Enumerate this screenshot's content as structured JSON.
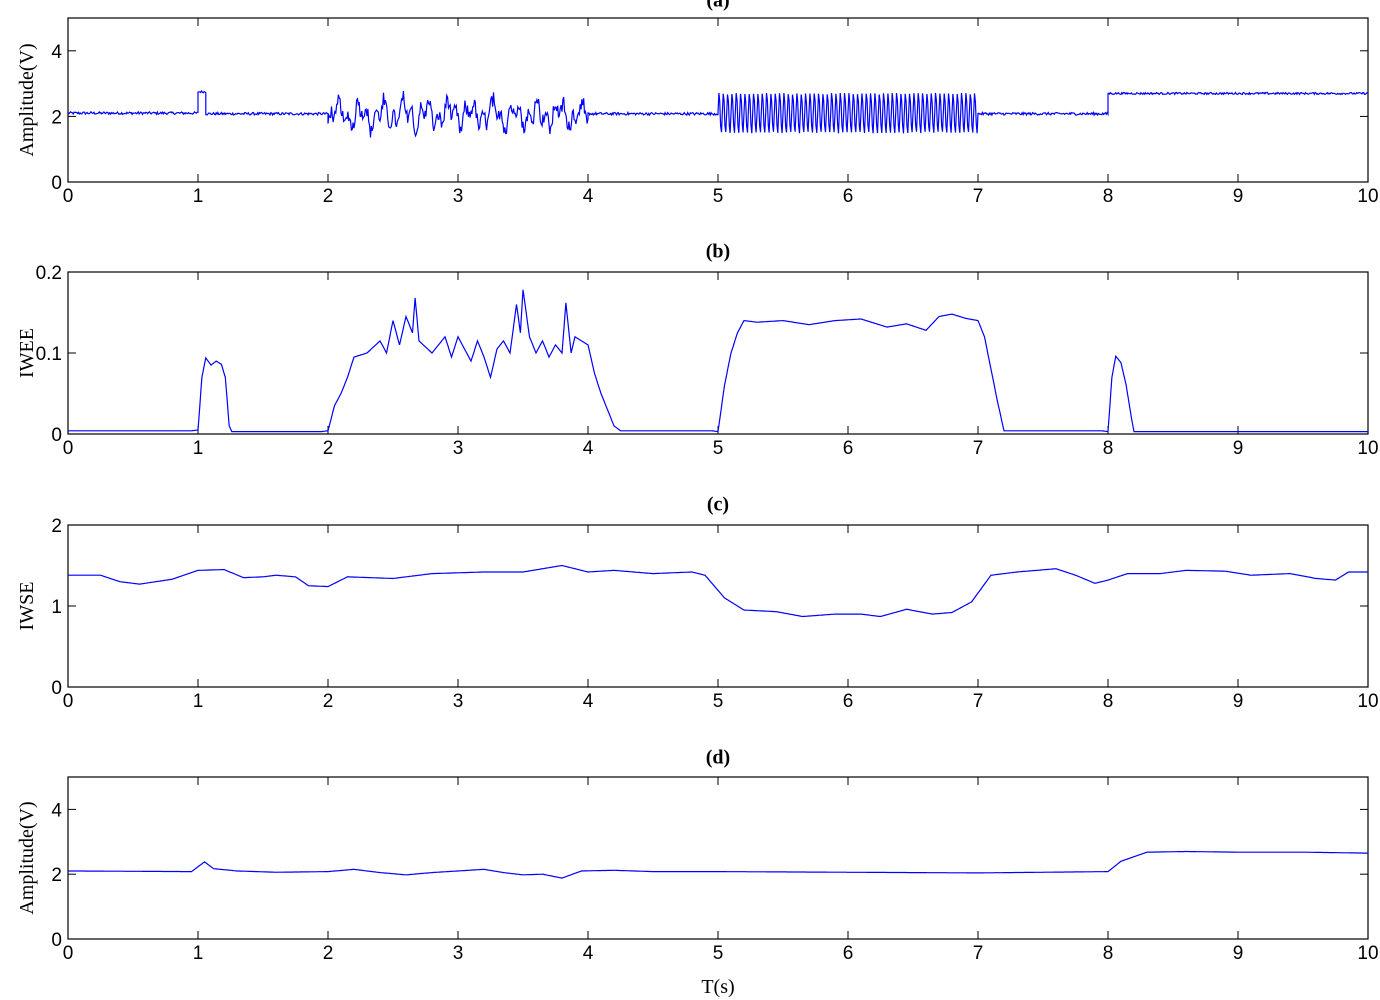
{
  "chart_data": [
    {
      "type": "line",
      "title": "(a)",
      "xlabel": "",
      "ylabel": "Amplitude(V)",
      "xlim": [
        0,
        10
      ],
      "ylim": [
        0,
        5
      ],
      "xticks": [
        "0",
        "1",
        "2",
        "3",
        "4",
        "5",
        "6",
        "7",
        "8",
        "9",
        "10"
      ],
      "yticks": [
        "0",
        "2",
        "4"
      ],
      "ytick_values": [
        0,
        2,
        4
      ],
      "color": "#0000ff",
      "series": [
        {
          "segments": [
            {
              "t0": 0,
              "t1": 1,
              "kind": "flat",
              "level": 2.1,
              "noise": 0.04
            },
            {
              "t0": 1,
              "t1": 1.06,
              "kind": "flat",
              "level": 2.75,
              "noise": 0.03
            },
            {
              "t0": 1.06,
              "t1": 2,
              "kind": "flat",
              "level": 2.08,
              "noise": 0.04
            },
            {
              "t0": 2,
              "t1": 4,
              "kind": "burst",
              "level": 2.05,
              "amp": 0.6
            },
            {
              "t0": 4,
              "t1": 5,
              "kind": "flat",
              "level": 2.08,
              "noise": 0.04
            },
            {
              "t0": 5,
              "t1": 7,
              "kind": "osc",
              "level": 2.1,
              "amp": 0.62,
              "freq": 30
            },
            {
              "t0": 7,
              "t1": 8,
              "kind": "flat",
              "level": 2.08,
              "noise": 0.04
            },
            {
              "t0": 8,
              "t1": 10,
              "kind": "flat",
              "level": 2.7,
              "noise": 0.03
            }
          ]
        }
      ]
    },
    {
      "type": "line",
      "title": "(b)",
      "xlabel": "",
      "ylabel": "IWEE",
      "xlim": [
        0,
        10
      ],
      "ylim": [
        0,
        0.2
      ],
      "xticks": [
        "0",
        "1",
        "2",
        "3",
        "4",
        "5",
        "6",
        "7",
        "8",
        "9",
        "10"
      ],
      "yticks": [
        "0",
        "0.1",
        "0.2"
      ],
      "ytick_values": [
        0,
        0.1,
        0.2
      ],
      "color": "#0000ff",
      "series": [
        {
          "points": [
            [
              0,
              0.004
            ],
            [
              0.95,
              0.004
            ],
            [
              1.0,
              0.005
            ],
            [
              1.03,
              0.07
            ],
            [
              1.06,
              0.094
            ],
            [
              1.1,
              0.085
            ],
            [
              1.14,
              0.09
            ],
            [
              1.18,
              0.086
            ],
            [
              1.21,
              0.07
            ],
            [
              1.24,
              0.01
            ],
            [
              1.26,
              0.003
            ],
            [
              1.95,
              0.003
            ],
            [
              2.0,
              0.004
            ],
            [
              2.05,
              0.035
            ],
            [
              2.1,
              0.05
            ],
            [
              2.15,
              0.07
            ],
            [
              2.2,
              0.095
            ],
            [
              2.3,
              0.1
            ],
            [
              2.4,
              0.115
            ],
            [
              2.45,
              0.1
            ],
            [
              2.5,
              0.14
            ],
            [
              2.55,
              0.11
            ],
            [
              2.6,
              0.145
            ],
            [
              2.65,
              0.125
            ],
            [
              2.67,
              0.168
            ],
            [
              2.7,
              0.115
            ],
            [
              2.8,
              0.1
            ],
            [
              2.9,
              0.12
            ],
            [
              2.95,
              0.095
            ],
            [
              3.0,
              0.12
            ],
            [
              3.05,
              0.105
            ],
            [
              3.1,
              0.09
            ],
            [
              3.15,
              0.115
            ],
            [
              3.2,
              0.095
            ],
            [
              3.25,
              0.07
            ],
            [
              3.3,
              0.105
            ],
            [
              3.35,
              0.115
            ],
            [
              3.4,
              0.1
            ],
            [
              3.45,
              0.16
            ],
            [
              3.48,
              0.125
            ],
            [
              3.5,
              0.178
            ],
            [
              3.55,
              0.12
            ],
            [
              3.6,
              0.1
            ],
            [
              3.65,
              0.115
            ],
            [
              3.7,
              0.095
            ],
            [
              3.75,
              0.11
            ],
            [
              3.8,
              0.1
            ],
            [
              3.83,
              0.162
            ],
            [
              3.87,
              0.1
            ],
            [
              3.9,
              0.12
            ],
            [
              3.95,
              0.115
            ],
            [
              4.0,
              0.11
            ],
            [
              4.05,
              0.075
            ],
            [
              4.1,
              0.05
            ],
            [
              4.15,
              0.03
            ],
            [
              4.2,
              0.01
            ],
            [
              4.25,
              0.004
            ],
            [
              4.95,
              0.004
            ],
            [
              5.0,
              0.003
            ],
            [
              5.05,
              0.06
            ],
            [
              5.1,
              0.1
            ],
            [
              5.15,
              0.125
            ],
            [
              5.2,
              0.14
            ],
            [
              5.3,
              0.138
            ],
            [
              5.5,
              0.14
            ],
            [
              5.7,
              0.135
            ],
            [
              5.9,
              0.14
            ],
            [
              6.1,
              0.142
            ],
            [
              6.3,
              0.132
            ],
            [
              6.45,
              0.136
            ],
            [
              6.6,
              0.128
            ],
            [
              6.7,
              0.145
            ],
            [
              6.8,
              0.148
            ],
            [
              6.9,
              0.143
            ],
            [
              7.0,
              0.14
            ],
            [
              7.05,
              0.12
            ],
            [
              7.1,
              0.08
            ],
            [
              7.15,
              0.04
            ],
            [
              7.2,
              0.004
            ],
            [
              7.95,
              0.004
            ],
            [
              8.0,
              0.003
            ],
            [
              8.03,
              0.07
            ],
            [
              8.06,
              0.096
            ],
            [
              8.1,
              0.088
            ],
            [
              8.14,
              0.06
            ],
            [
              8.18,
              0.02
            ],
            [
              8.2,
              0.003
            ],
            [
              10,
              0.003
            ]
          ]
        }
      ]
    },
    {
      "type": "line",
      "title": "(c)",
      "xlabel": "",
      "ylabel": "IWSE",
      "xlim": [
        0,
        10
      ],
      "ylim": [
        0,
        2
      ],
      "xticks": [
        "0",
        "1",
        "2",
        "3",
        "4",
        "5",
        "6",
        "7",
        "8",
        "9",
        "10"
      ],
      "yticks": [
        "0",
        "1",
        "2"
      ],
      "ytick_values": [
        0,
        1,
        2
      ],
      "color": "#0000ff",
      "series": [
        {
          "points": [
            [
              0,
              1.38
            ],
            [
              0.25,
              1.38
            ],
            [
              0.4,
              1.3
            ],
            [
              0.55,
              1.27
            ],
            [
              0.8,
              1.33
            ],
            [
              1.0,
              1.44
            ],
            [
              1.2,
              1.45
            ],
            [
              1.35,
              1.35
            ],
            [
              1.5,
              1.36
            ],
            [
              1.6,
              1.38
            ],
            [
              1.75,
              1.36
            ],
            [
              1.85,
              1.25
            ],
            [
              2.0,
              1.24
            ],
            [
              2.15,
              1.36
            ],
            [
              2.5,
              1.34
            ],
            [
              2.8,
              1.4
            ],
            [
              3.2,
              1.42
            ],
            [
              3.5,
              1.42
            ],
            [
              3.8,
              1.5
            ],
            [
              4.0,
              1.42
            ],
            [
              4.2,
              1.44
            ],
            [
              4.5,
              1.4
            ],
            [
              4.8,
              1.42
            ],
            [
              4.9,
              1.38
            ],
            [
              5.05,
              1.1
            ],
            [
              5.2,
              0.95
            ],
            [
              5.45,
              0.93
            ],
            [
              5.65,
              0.87
            ],
            [
              5.9,
              0.9
            ],
            [
              6.1,
              0.9
            ],
            [
              6.25,
              0.87
            ],
            [
              6.45,
              0.96
            ],
            [
              6.65,
              0.9
            ],
            [
              6.8,
              0.92
            ],
            [
              6.95,
              1.05
            ],
            [
              7.1,
              1.38
            ],
            [
              7.3,
              1.42
            ],
            [
              7.6,
              1.46
            ],
            [
              7.75,
              1.38
            ],
            [
              7.9,
              1.28
            ],
            [
              8.0,
              1.32
            ],
            [
              8.15,
              1.4
            ],
            [
              8.4,
              1.4
            ],
            [
              8.6,
              1.44
            ],
            [
              8.9,
              1.43
            ],
            [
              9.1,
              1.38
            ],
            [
              9.4,
              1.4
            ],
            [
              9.6,
              1.34
            ],
            [
              9.75,
              1.32
            ],
            [
              9.85,
              1.42
            ],
            [
              10,
              1.42
            ]
          ]
        }
      ]
    },
    {
      "type": "line",
      "title": "(d)",
      "xlabel": "T(s)",
      "ylabel": "Amplitude(V)",
      "xlim": [
        0,
        10
      ],
      "ylim": [
        0,
        5
      ],
      "xticks": [
        "0",
        "1",
        "2",
        "3",
        "4",
        "5",
        "6",
        "7",
        "8",
        "9",
        "10"
      ],
      "yticks": [
        "0",
        "2",
        "4"
      ],
      "ytick_values": [
        0,
        2,
        4
      ],
      "color": "#0000ff",
      "series": [
        {
          "points": [
            [
              0,
              2.1
            ],
            [
              0.95,
              2.08
            ],
            [
              1.05,
              2.38
            ],
            [
              1.12,
              2.17
            ],
            [
              1.3,
              2.1
            ],
            [
              1.6,
              2.06
            ],
            [
              2.0,
              2.08
            ],
            [
              2.2,
              2.15
            ],
            [
              2.4,
              2.05
            ],
            [
              2.6,
              1.98
            ],
            [
              2.8,
              2.05
            ],
            [
              3.0,
              2.1
            ],
            [
              3.2,
              2.15
            ],
            [
              3.35,
              2.05
            ],
            [
              3.5,
              1.98
            ],
            [
              3.65,
              2.0
            ],
            [
              3.8,
              1.88
            ],
            [
              3.95,
              2.1
            ],
            [
              4.2,
              2.12
            ],
            [
              4.5,
              2.08
            ],
            [
              5.0,
              2.08
            ],
            [
              6.0,
              2.06
            ],
            [
              7.0,
              2.04
            ],
            [
              7.5,
              2.06
            ],
            [
              8.0,
              2.08
            ],
            [
              8.1,
              2.4
            ],
            [
              8.3,
              2.68
            ],
            [
              8.6,
              2.7
            ],
            [
              9.0,
              2.68
            ],
            [
              9.5,
              2.68
            ],
            [
              10,
              2.65
            ]
          ]
        }
      ]
    }
  ]
}
